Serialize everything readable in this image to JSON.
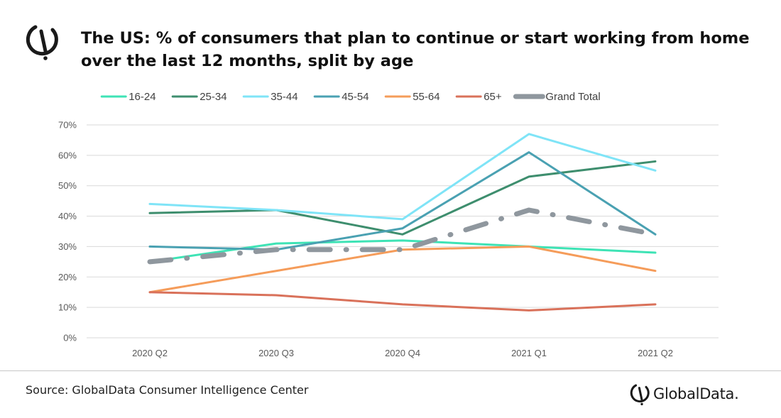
{
  "title": {
    "line1": "The US: % of consumers that plan to continue or start working from home",
    "line2": "over the last 12 months, split by age"
  },
  "footer": {
    "source": "Source: GlobalData Consumer Intelligence Center",
    "brand": "GlobalData."
  },
  "colors": {
    "brand_mark": "#1a1a1a",
    "grid": "#d9d9d9",
    "axis_text": "#595959"
  },
  "icons": {
    "logo": "globaldata-logo-icon"
  },
  "chart_data": {
    "type": "line",
    "categories": [
      "2020 Q2",
      "2020 Q3",
      "2020 Q4",
      "2021 Q1",
      "2021 Q2"
    ],
    "ylim": [
      0,
      70
    ],
    "yticks": [
      0,
      10,
      20,
      30,
      40,
      50,
      60,
      70
    ],
    "ytick_labels": [
      "0%",
      "10%",
      "20%",
      "30%",
      "40%",
      "50%",
      "60%",
      "70%"
    ],
    "unit": "%",
    "grid": true,
    "legend_position": "top",
    "series": [
      {
        "name": "16-24",
        "color": "#3ee3b5",
        "dashed": false,
        "values": [
          25,
          31,
          32,
          30,
          28
        ]
      },
      {
        "name": "25-34",
        "color": "#3e8e6e",
        "dashed": false,
        "values": [
          41,
          42,
          34,
          53,
          58
        ]
      },
      {
        "name": "35-44",
        "color": "#7fe4f7",
        "dashed": false,
        "values": [
          44,
          42,
          39,
          67,
          55
        ]
      },
      {
        "name": "45-54",
        "color": "#4aa1b2",
        "dashed": false,
        "values": [
          30,
          29,
          36,
          61,
          34
        ]
      },
      {
        "name": "55-64",
        "color": "#f59c5a",
        "dashed": false,
        "values": [
          15,
          22,
          29,
          30,
          22
        ]
      },
      {
        "name": "65+",
        "color": "#d9715a",
        "dashed": false,
        "values": [
          15,
          14,
          11,
          9,
          11
        ]
      },
      {
        "name": "Grand Total",
        "color": "#8f979e",
        "dashed": true,
        "values": [
          25,
          29,
          29,
          42,
          34
        ]
      }
    ]
  }
}
